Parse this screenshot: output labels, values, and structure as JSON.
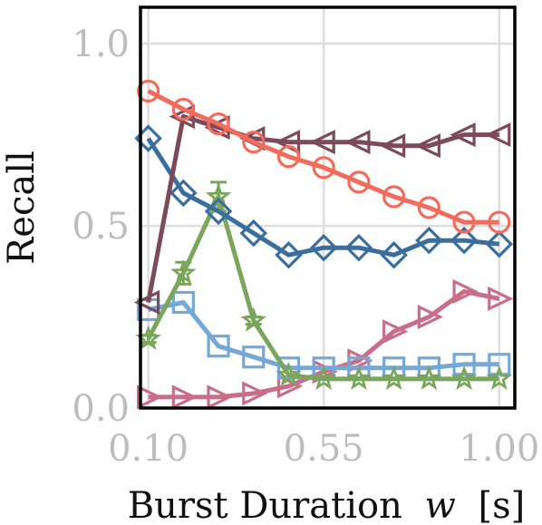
{
  "chart_data": {
    "type": "line",
    "xlabel": "Burst Duration",
    "xlabel_var": "w",
    "xlabel_unit": "[s]",
    "ylabel": "Recall",
    "xlim": [
      0.08,
      1.04
    ],
    "ylim": [
      0.0,
      1.1
    ],
    "xticks": [
      0.1,
      0.55,
      1.0
    ],
    "xtick_labels": [
      "0.10",
      "0.55",
      "1.00"
    ],
    "yticks": [
      0.0,
      0.5,
      1.0
    ],
    "ytick_labels": [
      "0.0",
      "0.5",
      "1.0"
    ],
    "grid": true,
    "x": [
      0.1,
      0.19,
      0.28,
      0.37,
      0.46,
      0.55,
      0.64,
      0.73,
      0.82,
      0.91,
      1.0
    ],
    "series": [
      {
        "color": "#c96e89",
        "marker": "triangle-right",
        "values": [
          0.03,
          0.03,
          0.03,
          0.04,
          0.06,
          0.1,
          0.13,
          0.21,
          0.25,
          0.32,
          0.3
        ]
      },
      {
        "color": "#74a8d8",
        "marker": "square",
        "values": [
          0.27,
          0.29,
          0.17,
          0.14,
          0.11,
          0.11,
          0.11,
          0.11,
          0.11,
          0.12,
          0.12
        ]
      },
      {
        "color": "#7aa65c",
        "marker": "star",
        "values": [
          0.19,
          0.37,
          0.58,
          0.24,
          0.09,
          0.08,
          0.08,
          0.08,
          0.08,
          0.08,
          0.08
        ],
        "errors": [
          0.01,
          0.03,
          0.04,
          0.01,
          0.0,
          0.0,
          0.0,
          0.0,
          0.0,
          0.0,
          0.0
        ]
      },
      {
        "color": "#3a6e9e",
        "marker": "diamond",
        "values": [
          0.74,
          0.59,
          0.54,
          0.48,
          0.42,
          0.44,
          0.44,
          0.42,
          0.46,
          0.46,
          0.45
        ]
      },
      {
        "color": "#7c4a5b",
        "marker": "triangle-left",
        "values": [
          0.29,
          0.8,
          0.77,
          0.74,
          0.73,
          0.73,
          0.73,
          0.72,
          0.72,
          0.75,
          0.75
        ]
      },
      {
        "color": "#f26b5b",
        "marker": "circle",
        "values": [
          0.87,
          0.82,
          0.78,
          0.73,
          0.69,
          0.66,
          0.62,
          0.58,
          0.55,
          0.51,
          0.51
        ]
      }
    ]
  }
}
